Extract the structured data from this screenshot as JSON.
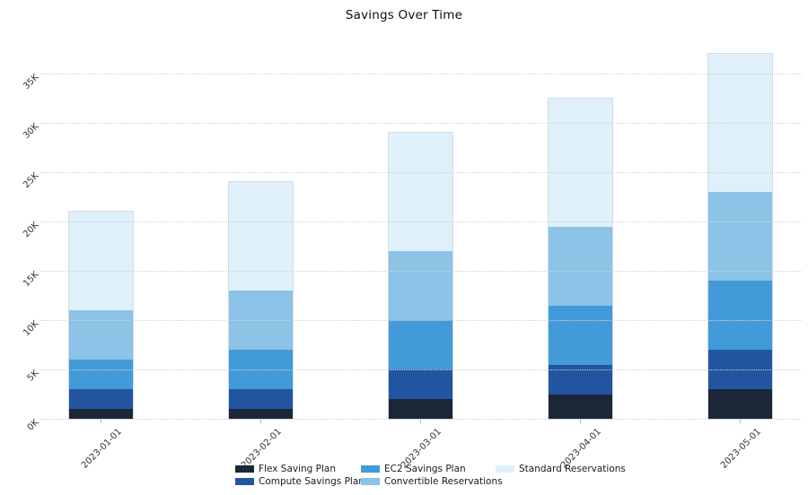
{
  "chart_data": {
    "type": "bar",
    "stacked": true,
    "title": "Savings Over Time",
    "xlabel": "",
    "ylabel": "",
    "categories": [
      "2023-01-01",
      "2023-02-01",
      "2023-03-01",
      "2023-04-01",
      "2023-05-01"
    ],
    "series": [
      {
        "name": "Flex Saving Plan",
        "color": "#1b2638",
        "values": [
          1000,
          1000,
          2000,
          2500,
          3000
        ]
      },
      {
        "name": "Compute Savings Plan",
        "color": "#2155a0",
        "values": [
          2000,
          2000,
          3000,
          3000,
          4000
        ]
      },
      {
        "name": "EC2 Savings Plan",
        "color": "#429ad8",
        "values": [
          3000,
          4000,
          5000,
          6000,
          7000
        ]
      },
      {
        "name": "Convertible Reservations",
        "color": "#8cc3e6",
        "values": [
          5000,
          6000,
          7000,
          8000,
          9000
        ]
      },
      {
        "name": "Standard Reservations",
        "color": "#dff0fb",
        "values": [
          10000,
          11000,
          12000,
          13000,
          14000
        ]
      }
    ],
    "bar_totals": [
      21000,
      24000,
      29000,
      32500,
      37000
    ],
    "ylim": [
      0,
      37500
    ],
    "yticks": [
      0,
      5000,
      10000,
      15000,
      20000,
      25000,
      30000,
      35000
    ],
    "ytick_labels": [
      "0K",
      "5K",
      "10K",
      "15K",
      "20K",
      "25K",
      "30K",
      "35K"
    ],
    "grid": "horizontal-dotted",
    "legend_position": "bottom",
    "legend_columns": [
      [
        "Flex Saving Plan",
        "Compute Savings Plan"
      ],
      [
        "EC2 Savings Plan",
        "Convertible Reservations"
      ],
      [
        "Standard Reservations"
      ]
    ]
  },
  "colors": {
    "background": "#ffffff",
    "gridline": "#d4d4d4",
    "tick_label": "#333333",
    "title_text": "#0d0d0d"
  }
}
